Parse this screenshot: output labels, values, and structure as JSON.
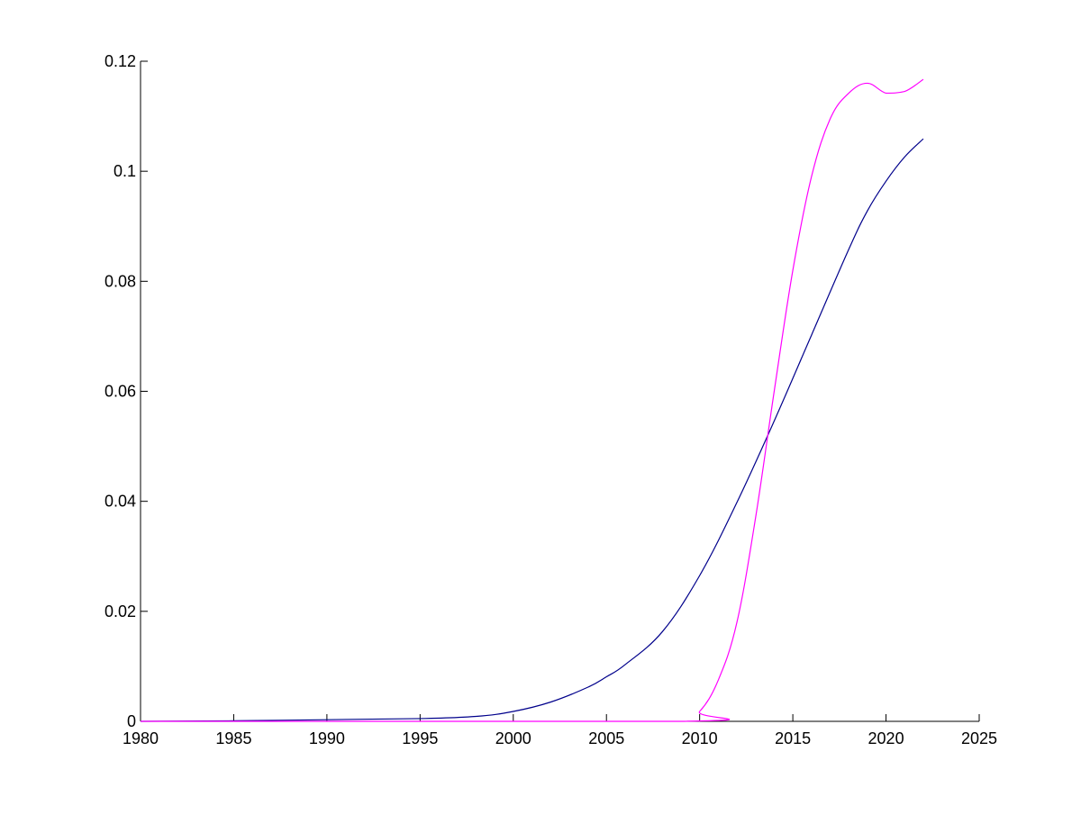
{
  "chart_data": {
    "type": "line",
    "title": "",
    "xlabel": "",
    "ylabel": "",
    "xlim": [
      1980,
      2025
    ],
    "ylim": [
      0,
      0.12
    ],
    "grid": false,
    "x_ticks": [
      "1980",
      "1985",
      "1990",
      "1995",
      "2000",
      "2005",
      "2010",
      "2015",
      "2020",
      "2025"
    ],
    "y_ticks": [
      "0",
      "0.02",
      "0.04",
      "0.06",
      "0.08",
      "0.1",
      "0.12"
    ],
    "x_tick_values": [
      1980,
      1985,
      1990,
      1995,
      2000,
      2005,
      2010,
      2015,
      2020,
      2025
    ],
    "y_tick_values": [
      0,
      0.02,
      0.04,
      0.06,
      0.08,
      0.1,
      0.12
    ],
    "series": [
      {
        "color": "#00008b",
        "x": [
          1980,
          1985,
          1990,
          1995,
          1998,
          2000,
          2002,
          2004,
          2005,
          2006,
          2008,
          2010,
          2012,
          2014,
          2016,
          2018,
          2019,
          2020,
          2021,
          2022
        ],
        "y": [
          0,
          0.0001,
          0.0003,
          0.0005,
          0.0009,
          0.0018,
          0.0035,
          0.0062,
          0.0081,
          0.0103,
          0.0163,
          0.0265,
          0.0398,
          0.0546,
          0.0702,
          0.0858,
          0.0928,
          0.0982,
          0.1026,
          0.1059
        ]
      },
      {
        "color": "#ff00ff",
        "x": [
          1980,
          2009,
          2010,
          2011,
          2012,
          2013,
          2014,
          2015,
          2016,
          2017,
          2018,
          2019,
          2020,
          2021,
          2022
        ],
        "y": [
          0,
          0,
          0.0018,
          0.0075,
          0.018,
          0.037,
          0.06,
          0.082,
          0.099,
          0.1095,
          0.1142,
          0.116,
          0.1142,
          0.1145,
          0.1167
        ]
      }
    ]
  }
}
